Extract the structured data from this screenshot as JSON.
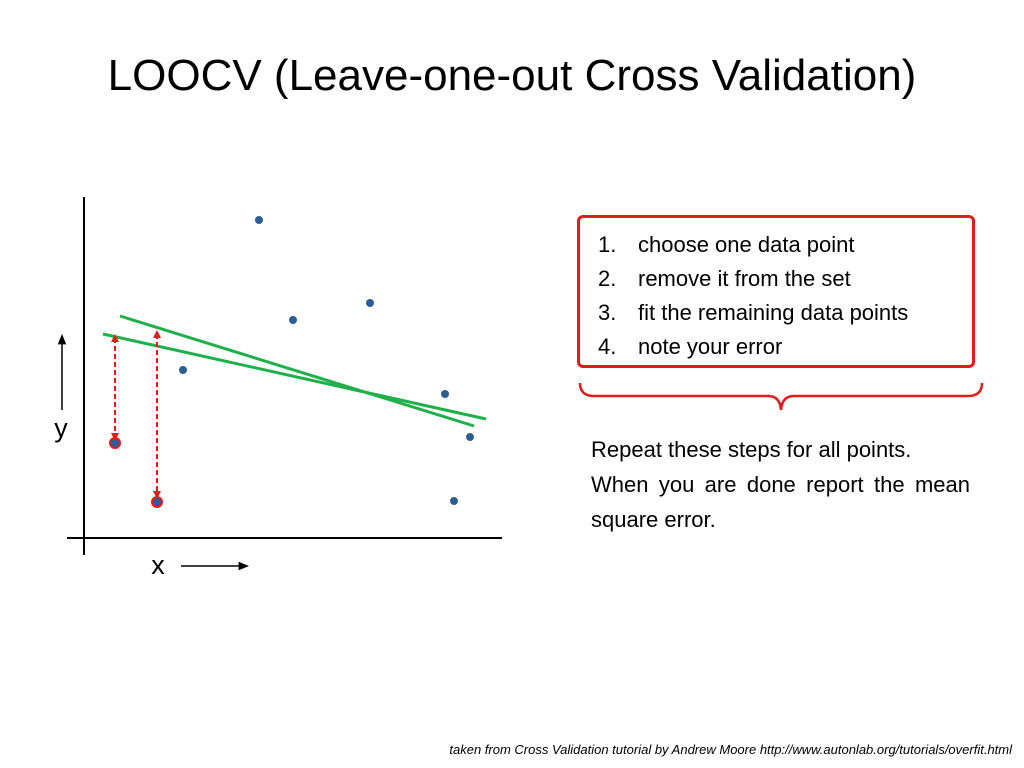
{
  "title": "LOOCV (Leave-one-out Cross Validation)",
  "diagram": {
    "x_label": "x",
    "y_label": "y",
    "colors": {
      "point": "#2e5c96",
      "held_out_outline": "#e41b1b",
      "fit_line": "#1fb04a",
      "error_arrow": "#e41b1b",
      "axis": "#000000"
    }
  },
  "steps": [
    {
      "num": "1.",
      "text": "choose one data point"
    },
    {
      "num": "2.",
      "text": "remove it from the set"
    },
    {
      "num": "3.",
      "text": "fit the remaining data points"
    },
    {
      "num": "4.",
      "text": "note your error"
    }
  ],
  "repeat_text": {
    "line1": "Repeat these steps for all points.",
    "line2": "When you are done report the mean square error."
  },
  "credit": "taken from Cross Validation tutorial by Andrew Moore http://www.autonlab.org/tutorials/overfit.html"
}
